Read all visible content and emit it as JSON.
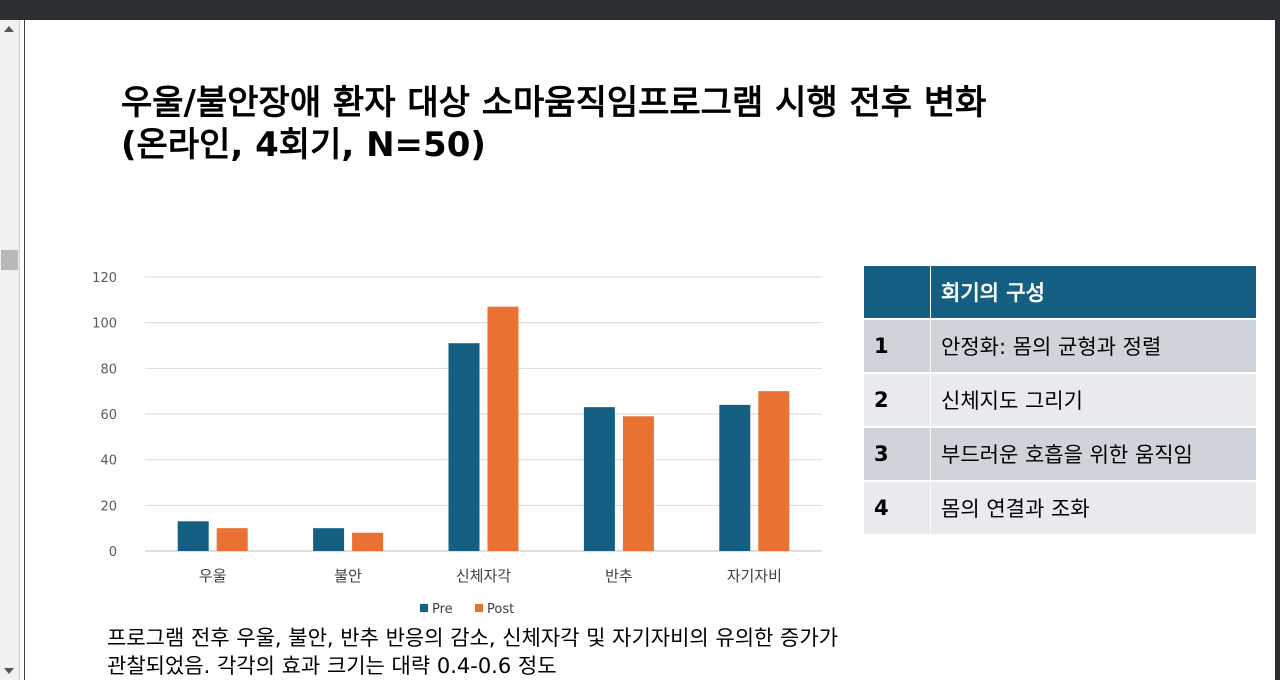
{
  "slide": {
    "title_line1": "우울/불안장애 환자 대상 소마움직임프로그램 시행 전후 변화",
    "title_line2": "(온라인, 4회기, N=50)"
  },
  "chart_data": {
    "type": "bar",
    "categories": [
      "우울",
      "불안",
      "신체자각",
      "반추",
      "자기자비"
    ],
    "series": [
      {
        "name": "Pre",
        "color": "#156082",
        "values": [
          13,
          10,
          91,
          63,
          64
        ]
      },
      {
        "name": "Post",
        "color": "#e97132",
        "values": [
          10,
          8,
          107,
          59,
          70
        ]
      }
    ],
    "yticks": [
      "0",
      "20",
      "40",
      "60",
      "80",
      "100",
      "120"
    ],
    "ylim": [
      0,
      120
    ],
    "grid": true,
    "legend_position": "bottom"
  },
  "sessions_table": {
    "header": [
      "",
      "회기의 구성"
    ],
    "rows": [
      {
        "num": "1",
        "content": "안정화: 몸의 균형과 정렬"
      },
      {
        "num": "2",
        "content": "신체지도 그리기"
      },
      {
        "num": "3",
        "content": "부드러운 호흡을 위한 움직임"
      },
      {
        "num": "4",
        "content": "몸의 연결과 조화"
      }
    ]
  },
  "summary": {
    "line1": "프로그램 전후 우울, 불안, 반추 반응의 감소, 신체자각 및 자기자비의 유의한 증가가",
    "line2": "관찰되었음.  각각의 효과 크기는 대략 0.4-0.6 정도"
  }
}
